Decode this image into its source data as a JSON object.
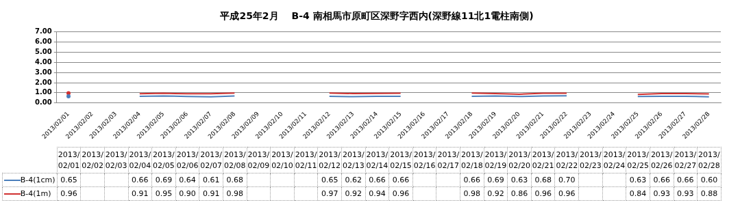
{
  "chart_data": {
    "type": "line",
    "title": "平成25年2月　 B-4 南相馬市原町区深野字西内(深野線11北1電柱南側)",
    "categories": [
      "2013/02/01",
      "2013/02/02",
      "2013/02/03",
      "2013/02/04",
      "2013/02/05",
      "2013/02/06",
      "2013/02/07",
      "2013/02/08",
      "2013/02/09",
      "2013/02/10",
      "2013/02/11",
      "2013/02/12",
      "2013/02/13",
      "2013/02/14",
      "2013/02/15",
      "2013/02/16",
      "2013/02/17",
      "2013/02/18",
      "2013/02/19",
      "2013/02/20",
      "2013/02/21",
      "2013/02/22",
      "2013/02/23",
      "2013/02/24",
      "2013/02/25",
      "2013/02/26",
      "2013/02/27",
      "2013/02/28"
    ],
    "series": [
      {
        "name": "B-4(1cm)",
        "color": "#4a7ebb",
        "values": [
          0.65,
          null,
          null,
          0.66,
          0.69,
          0.64,
          0.61,
          0.68,
          null,
          null,
          null,
          0.65,
          0.62,
          0.66,
          0.66,
          null,
          null,
          0.66,
          0.69,
          0.63,
          0.68,
          0.7,
          null,
          null,
          0.63,
          0.66,
          0.66,
          0.6
        ],
        "value_labels": [
          "0.65",
          null,
          null,
          "0.66",
          "0.69",
          "0.64",
          "0.61",
          "0.68",
          null,
          null,
          null,
          "0.65",
          "0.62",
          "0.66",
          "0.66",
          null,
          null,
          "0.66",
          "0.69",
          "0.63",
          "0.68",
          "0.70",
          null,
          null,
          "0.63",
          "0.66",
          "0.66",
          "0.60"
        ]
      },
      {
        "name": "B-4(1m)",
        "color": "#d03030",
        "values": [
          0.96,
          null,
          null,
          0.91,
          0.95,
          0.9,
          0.91,
          0.98,
          null,
          null,
          null,
          0.97,
          0.92,
          0.94,
          0.96,
          null,
          null,
          0.98,
          0.92,
          0.86,
          0.96,
          0.96,
          null,
          null,
          0.84,
          0.93,
          0.93,
          0.88
        ],
        "value_labels": [
          "0.96",
          null,
          null,
          "0.91",
          "0.95",
          "0.90",
          "0.91",
          "0.98",
          null,
          null,
          null,
          "0.97",
          "0.92",
          "0.94",
          "0.96",
          null,
          null,
          "0.98",
          "0.92",
          "0.86",
          "0.96",
          "0.96",
          null,
          null,
          "0.84",
          "0.93",
          "0.93",
          "0.88"
        ]
      }
    ],
    "ylim": [
      0,
      7
    ],
    "yticks": [
      {
        "value": 0,
        "label": "0.00"
      },
      {
        "value": 1,
        "label": "1.00"
      },
      {
        "value": 2,
        "label": "2.00"
      },
      {
        "value": 3,
        "label": "3.00"
      },
      {
        "value": 4,
        "label": "4.00"
      },
      {
        "value": 5,
        "label": "5.00"
      },
      {
        "value": 6,
        "label": "6.00"
      },
      {
        "value": 7,
        "label": "7.00"
      }
    ],
    "grid": "y",
    "legend": "bottom",
    "marker": "none",
    "line_style": "solid"
  }
}
